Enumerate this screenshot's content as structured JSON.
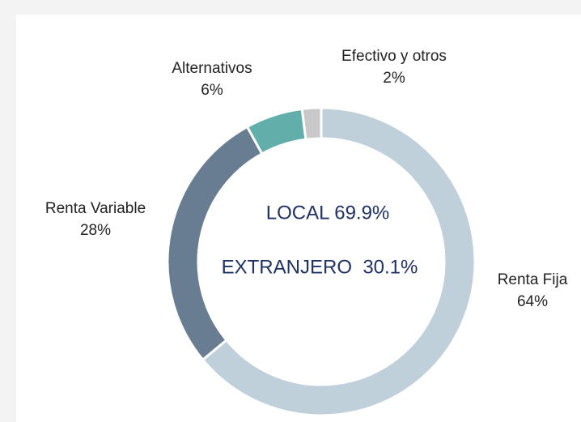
{
  "chart_data": {
    "type": "donut",
    "categories": [
      "Renta Fija",
      "Renta Variable",
      "Alternativos",
      "Efectivo y otros"
    ],
    "values": [
      64,
      28,
      6,
      2
    ],
    "value_labels": [
      "64%",
      "28%",
      "6%",
      "2%"
    ],
    "colors": [
      "#bfd0db",
      "#687d91",
      "#62aeab",
      "#c8c8c8"
    ],
    "annotations": [
      "LOCAL 69.9%",
      "EXTRANJERO  30.1%"
    ]
  }
}
